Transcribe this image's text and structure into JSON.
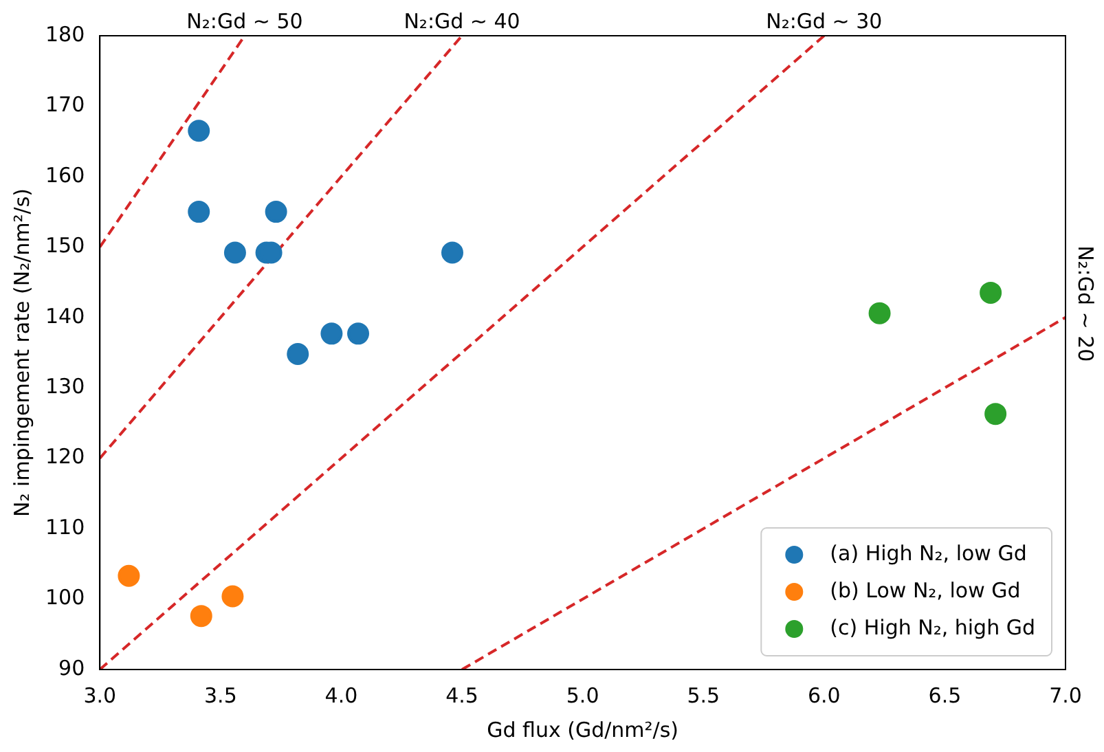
{
  "chart_data": {
    "type": "scatter",
    "xlabel": "Gd flux (Gd/nm²/s)",
    "ylabel": "N₂ impingement rate (N₂/nm²/s)",
    "xlim": [
      3.0,
      7.0
    ],
    "xticks": [
      {
        "value": 3,
        "label": "3.0"
      },
      {
        "value": 3.5,
        "label": "3.5"
      },
      {
        "value": 4,
        "label": "4.0"
      },
      {
        "value": 4.5,
        "label": "4.5"
      },
      {
        "value": 5,
        "label": "5.0"
      },
      {
        "value": 5.5,
        "label": "5.5"
      },
      {
        "value": 6,
        "label": "6.0"
      },
      {
        "value": 6.5,
        "label": "6.5"
      },
      {
        "value": 7,
        "label": "7.0"
      }
    ],
    "ylim": [
      90,
      180
    ],
    "yticks": [
      90,
      100,
      110,
      120,
      130,
      140,
      150,
      160,
      170,
      180
    ],
    "grid": false,
    "legend": "bottom right",
    "marker": "circle",
    "series": [
      {
        "name": "(a) High N₂, low Gd",
        "color": "#1f77b4",
        "x": [
          3.41,
          3.41,
          3.56,
          3.69,
          3.71,
          3.73,
          3.82,
          3.96,
          4.07,
          4.46
        ],
        "values": [
          166.5,
          155,
          149.2,
          149.2,
          149.2,
          155,
          134.8,
          137.7,
          137.7,
          149.2
        ]
      },
      {
        "name": "(b) Low N₂, low Gd",
        "color": "#ff7f0e",
        "x": [
          3.12,
          3.42,
          3.55
        ],
        "values": [
          103.3,
          97.6,
          100.4
        ]
      },
      {
        "name": "(c) High N₂, high Gd",
        "color": "#2ca02c",
        "x": [
          6.23,
          6.69,
          6.71
        ],
        "values": [
          140.6,
          143.5,
          126.3
        ]
      },
      {
        "name": "N₂:Gd ~ 50",
        "type": "line",
        "color": "#d62728",
        "line_style": "dashed",
        "marker": "none",
        "x": [
          3.0,
          3.6
        ],
        "values": [
          150,
          180
        ]
      },
      {
        "name": "N₂:Gd ~ 40",
        "type": "line",
        "color": "#d62728",
        "line_style": "dashed",
        "marker": "none",
        "x": [
          3.0,
          4.5
        ],
        "values": [
          120,
          180
        ]
      },
      {
        "name": "N₂:Gd ~ 30",
        "type": "line",
        "color": "#d62728",
        "line_style": "dashed",
        "marker": "none",
        "x": [
          3.0,
          6.0
        ],
        "values": [
          90,
          180
        ]
      },
      {
        "name": "N₂:Gd ~ 20",
        "type": "line",
        "color": "#d62728",
        "line_style": "dashed",
        "marker": "none",
        "x": [
          4.5,
          7.0
        ],
        "values": [
          90,
          140
        ]
      }
    ]
  }
}
